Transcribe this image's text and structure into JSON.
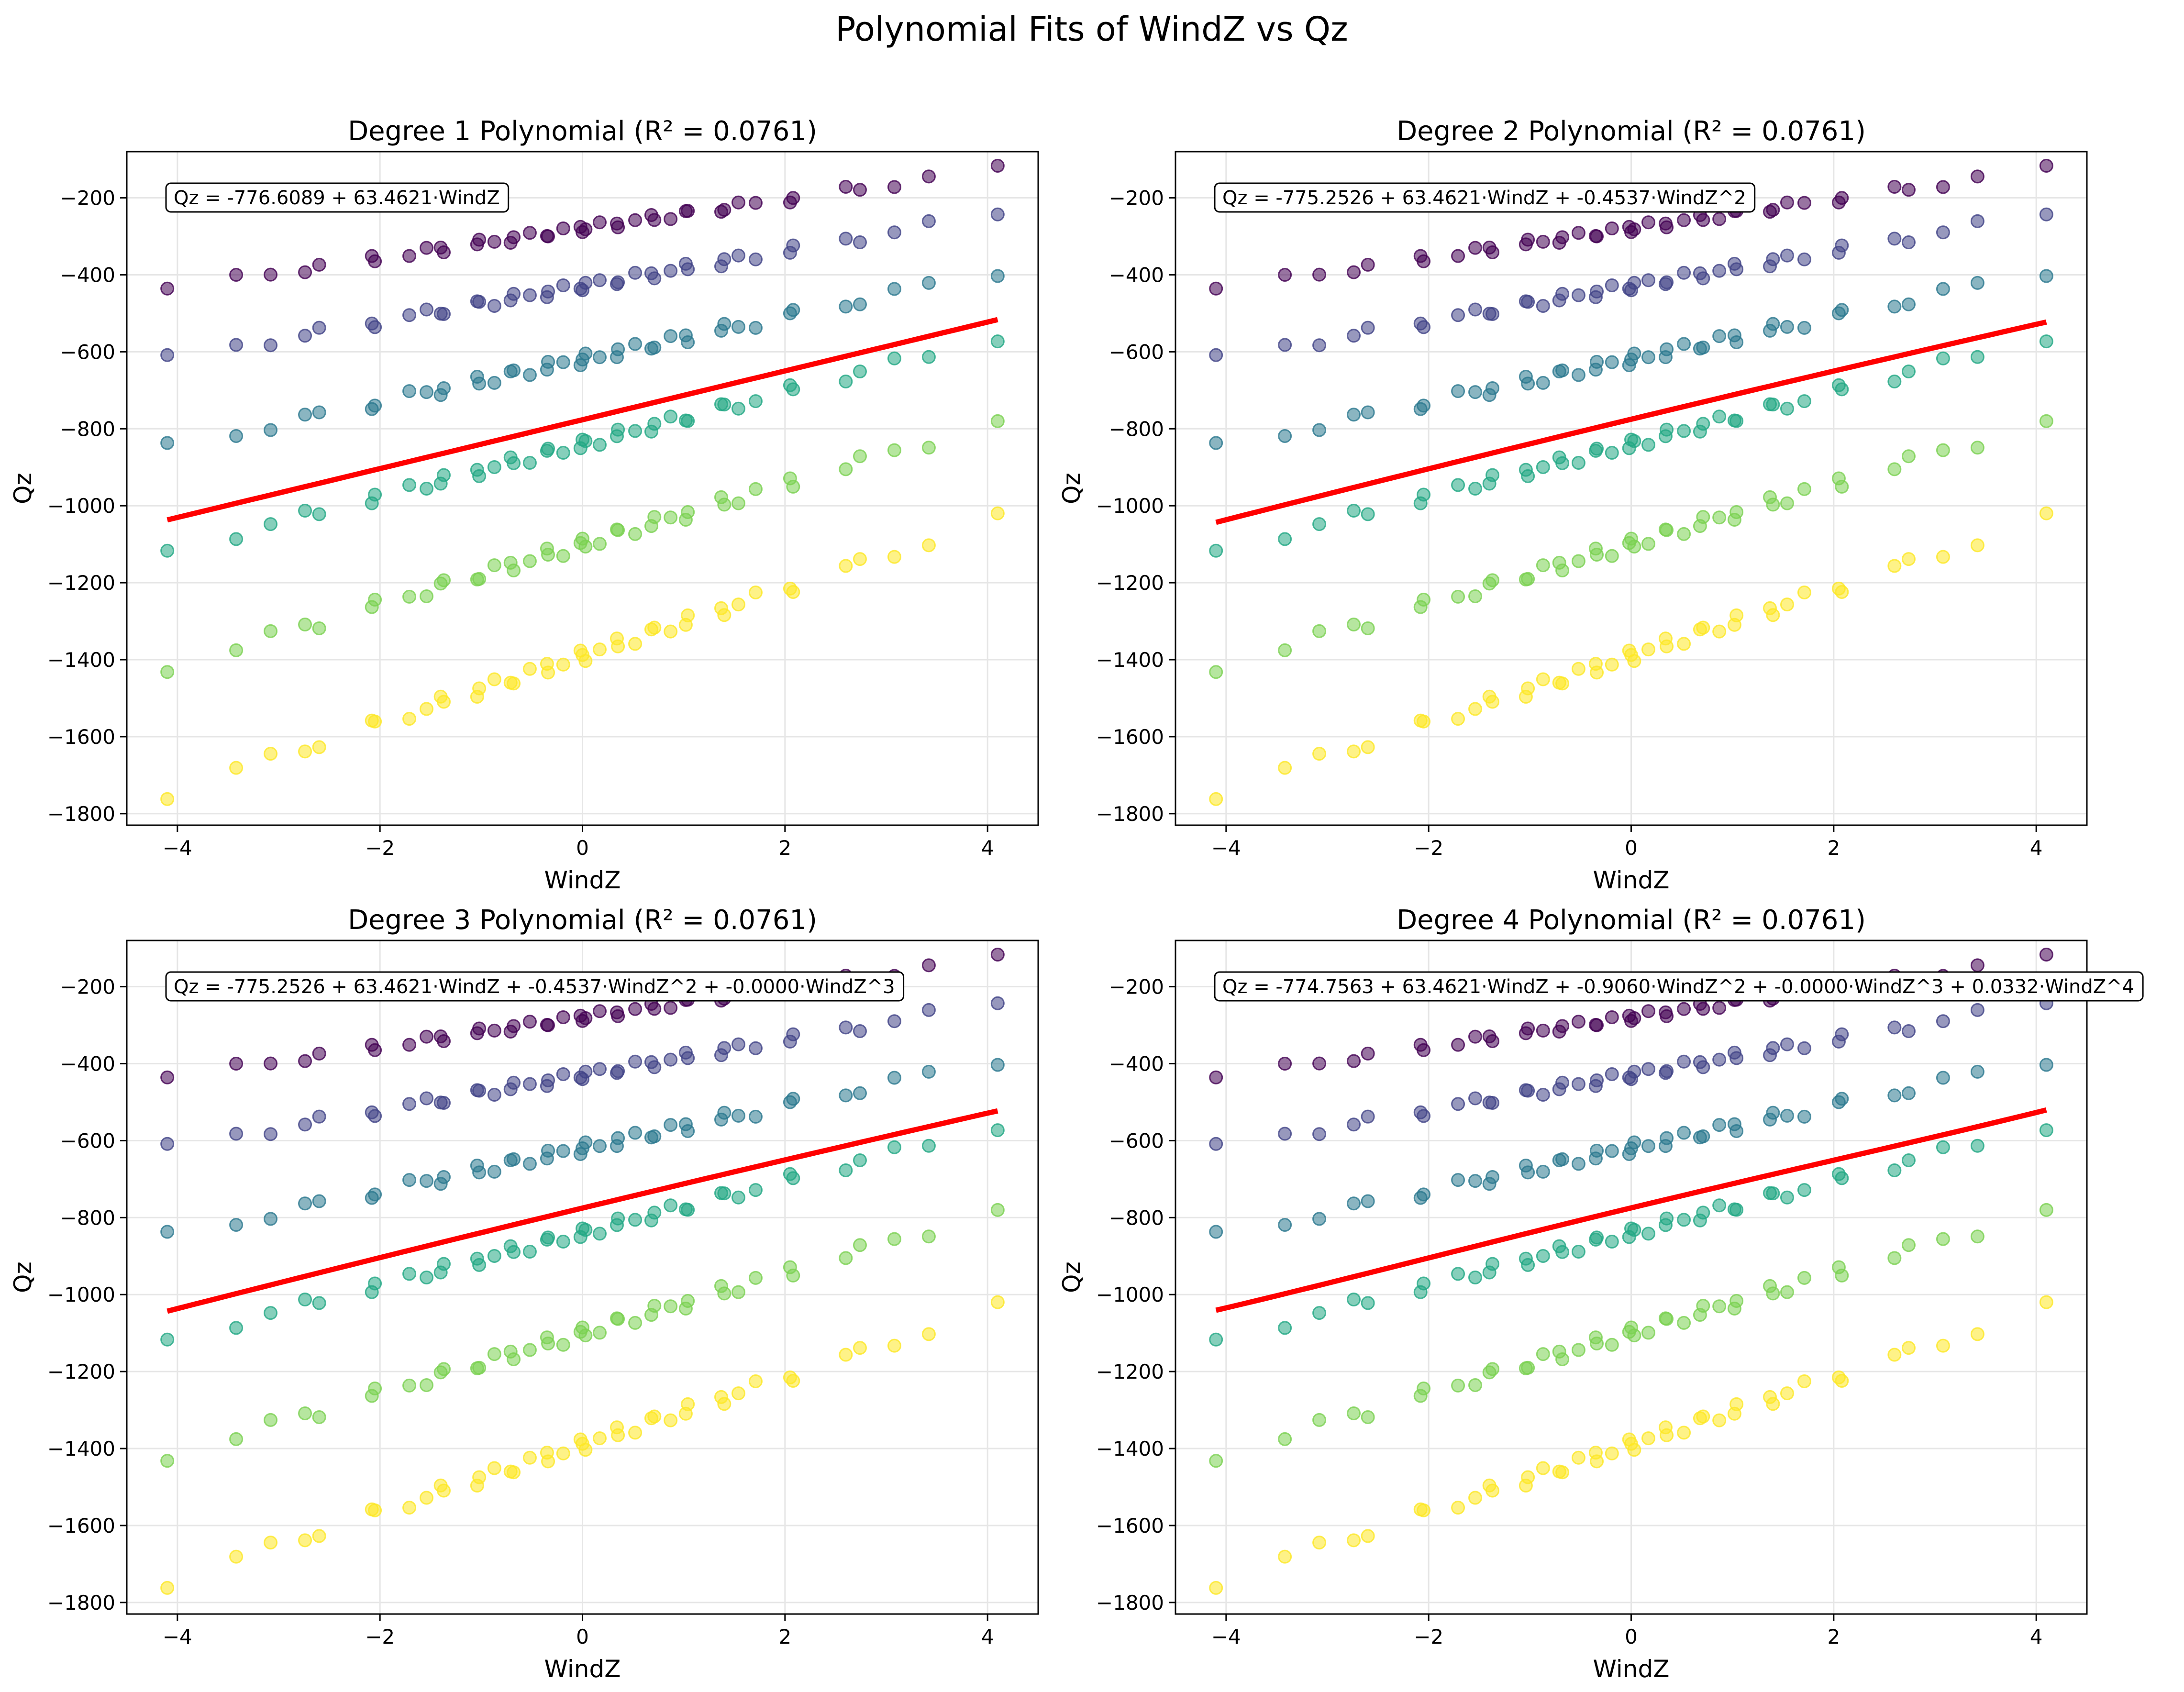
{
  "figure": {
    "suptitle": "Polynomial Fits of WindZ vs Qz"
  },
  "style": {
    "fit_color": "#ff0000",
    "grid_color": "#e6e6e6",
    "colormap": "viridis",
    "group_colors": [
      "#440154",
      "#414487",
      "#2a788e",
      "#22a884",
      "#7ad151",
      "#fde725"
    ]
  },
  "chart_data": [
    {
      "type": "scatter",
      "title": "Degree 1 Polynomial (R² = 0.0761)",
      "xlabel": "WindZ",
      "ylabel": "Qz",
      "xlim": [
        -4.5,
        4.5
      ],
      "ylim": [
        -1830,
        -80
      ],
      "xticks": [
        -4,
        -2,
        0,
        2,
        4
      ],
      "yticks": [
        -1800,
        -1600,
        -1400,
        -1200,
        -1000,
        -800,
        -600,
        -400,
        -200
      ],
      "grid": true,
      "equation": "Qz = -776.6089 + 63.4621·WindZ",
      "coefficients": [
        -776.6089,
        63.4621
      ],
      "fit_x_range": [
        -4.1,
        4.1
      ]
    },
    {
      "type": "scatter",
      "title": "Degree 2 Polynomial (R² = 0.0761)",
      "xlabel": "WindZ",
      "ylabel": "Qz",
      "xlim": [
        -4.5,
        4.5
      ],
      "ylim": [
        -1830,
        -80
      ],
      "xticks": [
        -4,
        -2,
        0,
        2,
        4
      ],
      "yticks": [
        -1800,
        -1600,
        -1400,
        -1200,
        -1000,
        -800,
        -600,
        -400,
        -200
      ],
      "grid": true,
      "equation": "Qz = -775.2526 + 63.4621·WindZ + -0.4537·WindZ^2",
      "coefficients": [
        -775.2526,
        63.4621,
        -0.4537
      ],
      "fit_x_range": [
        -4.1,
        4.1
      ]
    },
    {
      "type": "scatter",
      "title": "Degree 3 Polynomial (R² = 0.0761)",
      "xlabel": "WindZ",
      "ylabel": "Qz",
      "xlim": [
        -4.5,
        4.5
      ],
      "ylim": [
        -1830,
        -80
      ],
      "xticks": [
        -4,
        -2,
        0,
        2,
        4
      ],
      "yticks": [
        -1800,
        -1600,
        -1400,
        -1200,
        -1000,
        -800,
        -600,
        -400,
        -200
      ],
      "grid": true,
      "equation": "Qz = -775.2526 + 63.4621·WindZ + -0.4537·WindZ^2 + -0.0000·WindZ^3",
      "coefficients": [
        -775.2526,
        63.4621,
        -0.4537,
        0
      ],
      "fit_x_range": [
        -4.1,
        4.1
      ]
    },
    {
      "type": "scatter",
      "title": "Degree 4 Polynomial (R² = 0.0761)",
      "xlabel": "WindZ",
      "ylabel": "Qz",
      "xlim": [
        -4.5,
        4.5
      ],
      "ylim": [
        -1830,
        -80
      ],
      "xticks": [
        -4,
        -2,
        0,
        2,
        4
      ],
      "yticks": [
        -1800,
        -1600,
        -1400,
        -1200,
        -1000,
        -800,
        -600,
        -400,
        -200
      ],
      "grid": true,
      "equation": "Qz = -774.7563 + 63.4621·WindZ + -0.9060·WindZ^2 + -0.0000·WindZ^3 + 0.0332·WindZ^4",
      "coefficients": [
        -774.7563,
        63.4621,
        -0.906,
        0,
        0.0332
      ],
      "fit_x_range": [
        -4.1,
        4.1
      ]
    }
  ],
  "scatter_points": {
    "x": [
      -4.1,
      -3.42,
      -3.08,
      -2.74,
      -2.6,
      -2.08,
      -2.05,
      -1.71,
      -1.54,
      -1.4,
      -1.37,
      -1.04,
      -1.02,
      -0.87,
      -0.71,
      -0.68,
      -0.52,
      -0.35,
      -0.34,
      -0.19,
      -0.02,
      0.0,
      0.03,
      0.17,
      0.34,
      0.35,
      0.52,
      0.68,
      0.71,
      0.87,
      1.02,
      1.04,
      1.37,
      1.4,
      1.54,
      1.71,
      2.05,
      2.08,
      2.6,
      2.74,
      3.08,
      3.42,
      4.1
    ],
    "groups": [
      {
        "intercept": -280,
        "slope": 38,
        "wave_amp": 10
      },
      {
        "intercept": -430,
        "slope": 46,
        "wave_amp": 12
      },
      {
        "intercept": -620,
        "slope": 56,
        "wave_amp": 14
      },
      {
        "intercept": -840,
        "slope": 68,
        "wave_amp": 14
      },
      {
        "intercept": -1100,
        "slope": 78,
        "wave_amp": 16
      },
      {
        "intercept": -1390,
        "slope": 87,
        "wave_amp": 16
      }
    ]
  }
}
